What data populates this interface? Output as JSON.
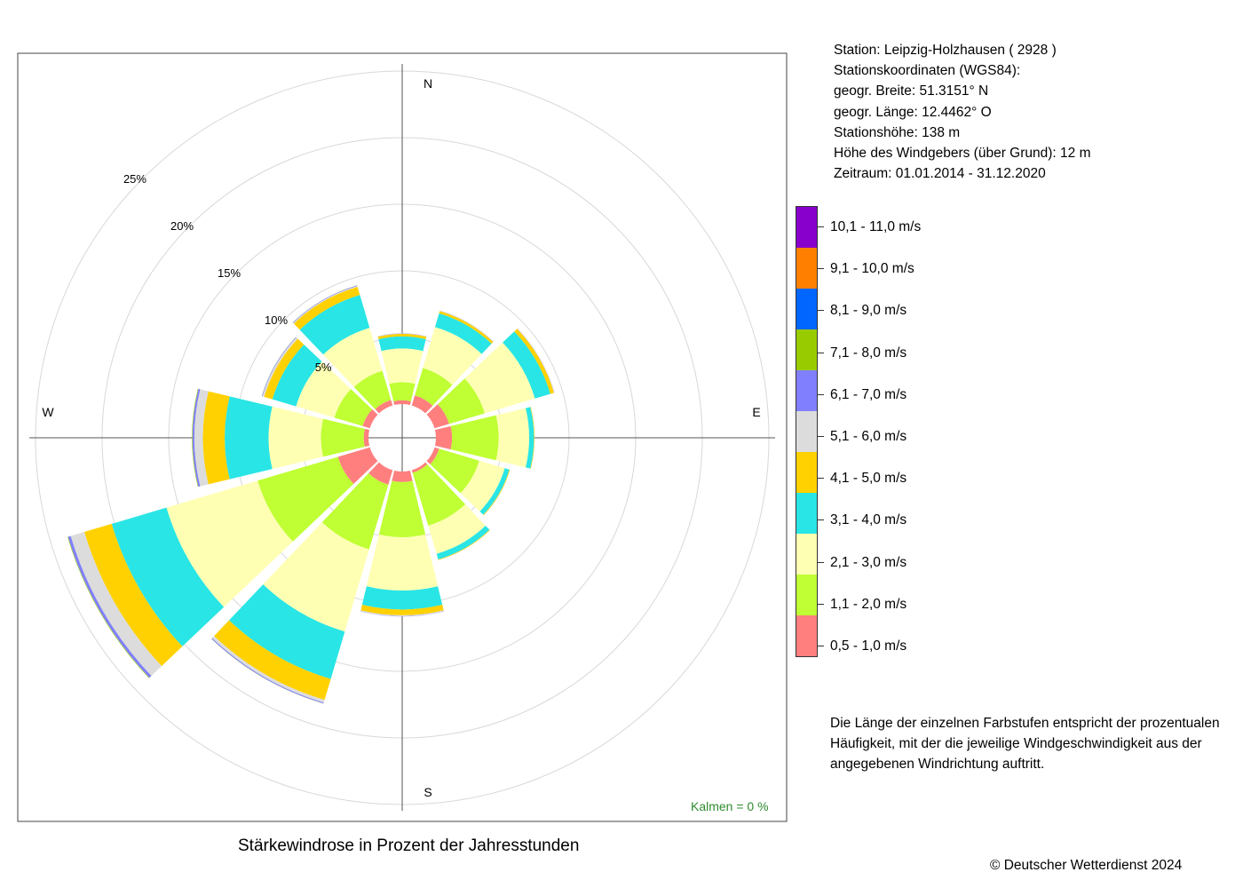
{
  "info": {
    "station": "Station:  Leipzig-Holzhausen  ( 2928 )",
    "coords_title": "Stationskoordinaten (WGS84):",
    "lat": "geogr. Breite: 51.3151° N",
    "lon": "geogr. Länge: 12.4462° O",
    "height": "Stationshöhe: 138 m",
    "sensor_height": "Höhe des Windgebers (über Grund): 12 m",
    "period": "Zeitraum: 01.01.2014 - 31.12.2020"
  },
  "note": "Die Länge der einzelnen Farbstufen entspricht der prozentualen Häufigkeit, mit der die jeweilige Windgeschwindigkeit aus der angegebenen Windrichtung auftritt.",
  "caption": "Stärkewindrose in Prozent der Jahresstunden",
  "copyright": "© Deutscher Wetterdienst  2024",
  "kalmen": "Kalmen  =  0 %",
  "chart_data": {
    "type": "polar-stacked-bar",
    "title": "Stärkewindrose in Prozent der Jahresstunden",
    "directions_deg": [
      0,
      30,
      60,
      90,
      120,
      150,
      180,
      210,
      240,
      270,
      300,
      330
    ],
    "compass_labels": [
      "N",
      "E",
      "S",
      "W"
    ],
    "radial_ticks": [
      5,
      10,
      15,
      20,
      25
    ],
    "radial_tick_labels": [
      "5%",
      "10%",
      "15%",
      "20%",
      "25%"
    ],
    "radial_unit": "%",
    "classes": [
      {
        "label": "0,5 - 1,0 m/s",
        "color": "#FF7F7F"
      },
      {
        "label": "1,1 - 2,0 m/s",
        "color": "#BFFF33"
      },
      {
        "label": "2,1 - 3,0 m/s",
        "color": "#FFFFB3"
      },
      {
        "label": "3,1 - 4,0 m/s",
        "color": "#29E5E5"
      },
      {
        "label": "4,1 - 5,0 m/s",
        "color": "#FFD100"
      },
      {
        "label": "5,1 - 6,0 m/s",
        "color": "#DCDCDC"
      },
      {
        "label": "6,1 - 7,0 m/s",
        "color": "#8080FF"
      },
      {
        "label": "7,1 - 8,0 m/s",
        "color": "#99CC00"
      },
      {
        "label": "8,1 - 9,0 m/s",
        "color": "#0066FF"
      },
      {
        "label": "9,1 - 10,0 m/s",
        "color": "#FF8000"
      },
      {
        "label": "10,1 - 11,0 m/s",
        "color": "#8800CC"
      }
    ],
    "series_by_direction": [
      {
        "dir": 0,
        "values": [
          0.28,
          1.36,
          2.53,
          0.91,
          0.19,
          0.03,
          0.01,
          0,
          0,
          0,
          0
        ]
      },
      {
        "dir": 30,
        "values": [
          0.79,
          2.14,
          3.21,
          1.07,
          0.18,
          0.03,
          0.01,
          0,
          0,
          0,
          0
        ]
      },
      {
        "dir": 60,
        "values": [
          1.14,
          2.79,
          3.93,
          1.21,
          0.29,
          0.03,
          0.01,
          0,
          0,
          0,
          0
        ]
      },
      {
        "dir": 90,
        "values": [
          1.21,
          3.5,
          2.29,
          0.36,
          0.04,
          0.01,
          0,
          0,
          0,
          0,
          0
        ]
      },
      {
        "dir": 120,
        "values": [
          0.36,
          3.14,
          2.0,
          0.36,
          0.05,
          0.01,
          0,
          0,
          0,
          0,
          0
        ]
      },
      {
        "dir": 150,
        "values": [
          0.21,
          4.14,
          2.21,
          0.43,
          0.05,
          0.01,
          0,
          0,
          0,
          0,
          0
        ]
      },
      {
        "dir": 180,
        "values": [
          0.79,
          4.14,
          4.0,
          1.43,
          0.43,
          0.07,
          0.02,
          0,
          0,
          0,
          0
        ]
      },
      {
        "dir": 210,
        "values": [
          1.14,
          5.07,
          6.43,
          3.71,
          1.64,
          0.21,
          0.07,
          0.01,
          0,
          0,
          0
        ]
      },
      {
        "dir": 240,
        "values": [
          2.5,
          6.29,
          7.14,
          4.29,
          2.14,
          1.07,
          0.21,
          0.04,
          0,
          0,
          0
        ]
      },
      {
        "dir": 270,
        "values": [
          0.36,
          3.21,
          3.93,
          3.29,
          1.64,
          0.64,
          0.14,
          0.04,
          0,
          0,
          0
        ]
      },
      {
        "dir": 300,
        "values": [
          0.57,
          2.21,
          3.0,
          1.86,
          0.64,
          0.14,
          0.04,
          0.01,
          0,
          0,
          0
        ]
      },
      {
        "dir": 330,
        "values": [
          0.43,
          2.29,
          3.36,
          2.57,
          0.64,
          0.07,
          0.04,
          0.01,
          0,
          0,
          0
        ]
      }
    ]
  }
}
